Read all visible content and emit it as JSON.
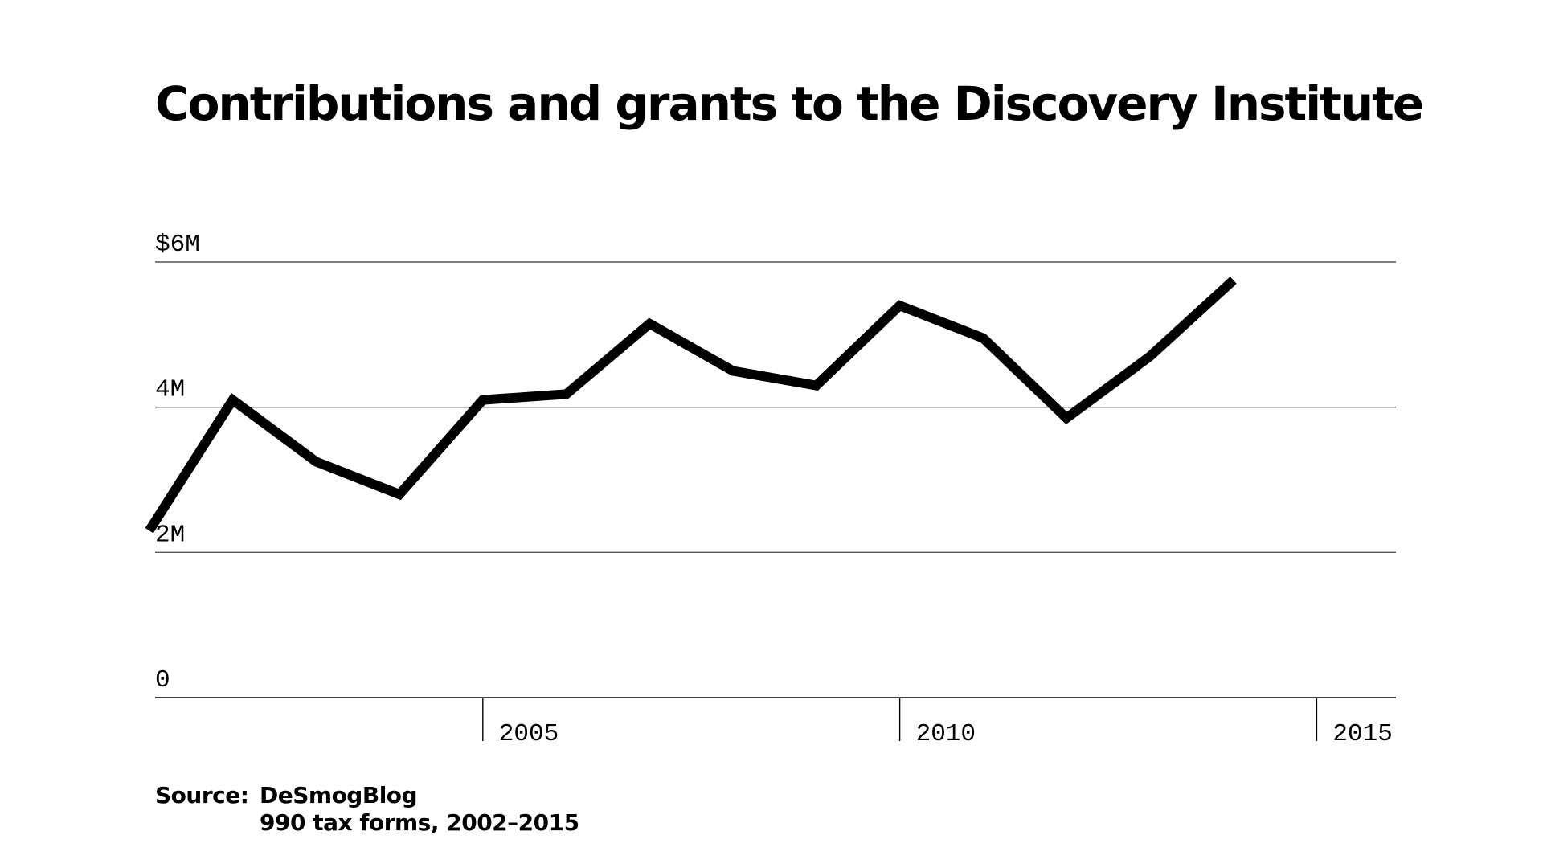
{
  "chart_data": {
    "type": "line",
    "title": "Contributions and grants to the Discovery Institute",
    "xlabel": "",
    "ylabel": "",
    "x": [
      2001,
      2002,
      2003,
      2004,
      2005,
      2006,
      2007,
      2008,
      2009,
      2010,
      2011,
      2012,
      2013,
      2014
    ],
    "values": [
      2.3,
      4.1,
      3.25,
      2.8,
      4.1,
      4.18,
      5.15,
      4.5,
      4.3,
      5.4,
      4.95,
      3.85,
      4.7,
      5.75
    ],
    "xlim": [
      2001.07,
      2015.95
    ],
    "ylim": [
      0,
      6
    ],
    "yticks": [
      {
        "value": 0,
        "label": "0"
      },
      {
        "value": 2,
        "label": "2M"
      },
      {
        "value": 4,
        "label": "4M"
      },
      {
        "value": 6,
        "label": "$6M"
      }
    ],
    "xticks": [
      {
        "value": 2005,
        "label": "2005"
      },
      {
        "value": 2010,
        "label": "2010"
      },
      {
        "value": 2015,
        "label": "2015"
      }
    ],
    "grid": true,
    "line_color": "#000000",
    "grid_color": "#555555"
  },
  "source": {
    "label": "Source:",
    "line1": "DeSmogBlog",
    "line2": "990 tax forms, 2002–2015"
  }
}
